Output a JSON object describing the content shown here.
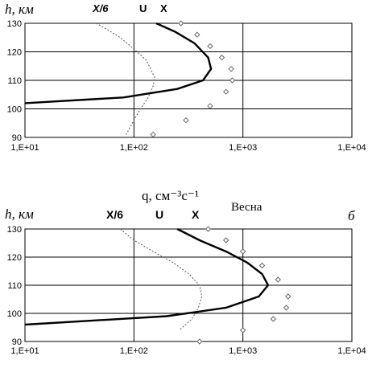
{
  "chart_data": [
    {
      "type": "line",
      "panel_label": "",
      "ylabel": "h, км",
      "xlabel": "q, см⁻³с⁻¹",
      "season": "Весна",
      "x_scale": "log",
      "xlim": [
        10,
        10000
      ],
      "ylim": [
        90,
        130
      ],
      "x_ticks": [
        "1,E+01",
        "1,E+02",
        "1,E+03",
        "1,E+04"
      ],
      "y_ticks": [
        "90",
        "100",
        "110",
        "120",
        "130"
      ],
      "grid": true,
      "legend": [
        "X/6",
        "U",
        "X"
      ],
      "series": [
        {
          "name": "X/6",
          "x": [
            45,
            56,
            75,
            100,
            130,
            155,
            150,
            135,
            115,
            100,
            85
          ],
          "y": [
            130,
            128,
            125,
            121,
            117,
            111,
            108,
            104,
            100,
            96,
            91
          ]
        },
        {
          "name": "U",
          "x": [
            160,
            240,
            360,
            480,
            510,
            430,
            250,
            80,
            10
          ],
          "y": [
            130,
            127,
            123,
            118,
            114,
            110,
            107,
            104,
            102
          ]
        },
        {
          "name": "X",
          "x": [
            270,
            380,
            500,
            640,
            780,
            800,
            700,
            500,
            300,
            150
          ],
          "y": [
            130,
            126,
            122,
            118,
            114,
            110,
            106,
            101,
            96,
            91
          ]
        }
      ]
    },
    {
      "type": "line",
      "panel_label": "б",
      "ylabel": "h, км",
      "xlabel": "",
      "season": "",
      "x_scale": "log",
      "xlim": [
        10,
        10000
      ],
      "ylim": [
        90,
        130
      ],
      "x_ticks": [
        "1,E+01",
        "1,E+02",
        "1,E+03",
        "1,E+04"
      ],
      "y_ticks": [
        "90",
        "100",
        "110",
        "120",
        "130"
      ],
      "grid": true,
      "legend": [
        "X/6",
        "U",
        "X"
      ],
      "series": [
        {
          "name": "X/6",
          "x": [
            75,
            100,
            150,
            230,
            320,
            400,
            420,
            390,
            340,
            260
          ],
          "y": [
            130,
            126,
            122,
            118,
            114,
            110,
            106,
            102,
            98,
            94
          ]
        },
        {
          "name": "U",
          "x": [
            250,
            400,
            700,
            1100,
            1500,
            1700,
            1400,
            700,
            200,
            10
          ],
          "y": [
            130,
            126,
            122,
            118,
            114,
            110,
            106,
            102,
            99,
            96
          ]
        },
        {
          "name": "X",
          "x": [
            480,
            700,
            1000,
            1500,
            2100,
            2600,
            2500,
            1900,
            1000,
            400
          ],
          "y": [
            130,
            126,
            122,
            117,
            112,
            106,
            102,
            98,
            94,
            90
          ]
        }
      ]
    }
  ]
}
